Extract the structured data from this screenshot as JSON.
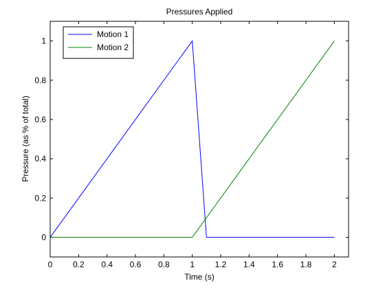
{
  "chart_data": {
    "type": "line",
    "title": "Pressures Applied",
    "xlabel": "Time (s)",
    "ylabel": "Pressure (as % of total)",
    "xlim": [
      0,
      2.1
    ],
    "ylim": [
      -0.1,
      1.1
    ],
    "xticks": [
      0,
      0.2,
      0.4,
      0.6,
      0.8,
      1,
      1.2,
      1.4,
      1.6,
      1.8,
      2
    ],
    "xtick_labels": [
      "0",
      "0.2",
      "0.4",
      "0.6",
      "0.8",
      "1",
      "1.2",
      "1.4",
      "1.6",
      "1.8",
      "2"
    ],
    "yticks": [
      0,
      0.2,
      0.4,
      0.6,
      0.8,
      1
    ],
    "ytick_labels": [
      "0",
      "0.2",
      "0.4",
      "0.6",
      "0.8",
      "1"
    ],
    "grid": false,
    "legend_position": "top-left",
    "series": [
      {
        "name": "Motion 1",
        "color": "#0000ff",
        "x": [
          0,
          1,
          1.1,
          2
        ],
        "y": [
          0,
          1,
          0,
          0
        ]
      },
      {
        "name": "Motion 2",
        "color": "#008000",
        "x": [
          0,
          1,
          2
        ],
        "y": [
          0,
          0,
          1
        ]
      }
    ]
  }
}
